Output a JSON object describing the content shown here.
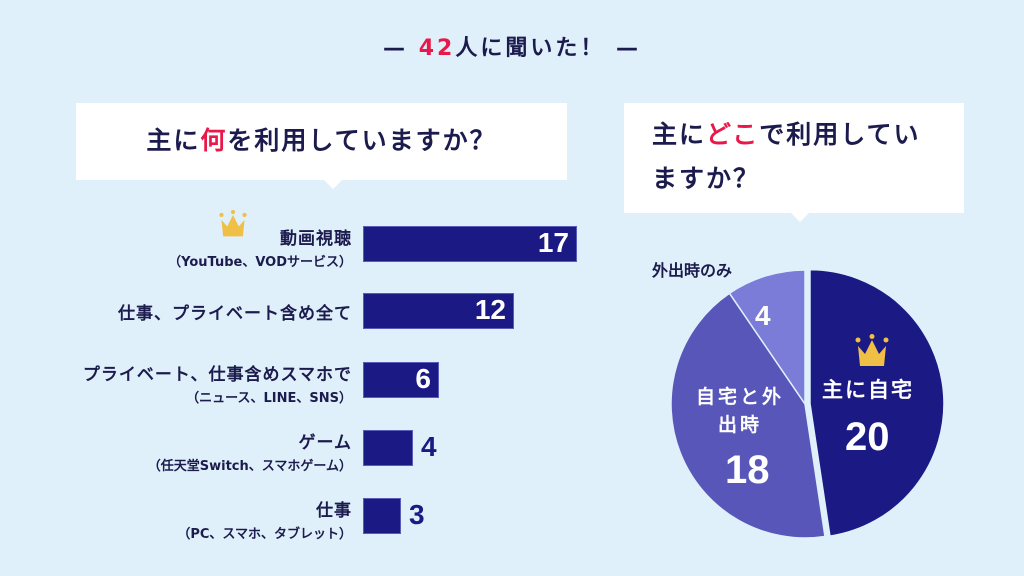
{
  "header": {
    "prefix": "— ",
    "number": "42",
    "suffix": "人に聞いた！ —"
  },
  "left_question": {
    "before": "主に",
    "highlight": "何",
    "after": "を利用していますか？"
  },
  "right_question": {
    "before": "主に",
    "highlight": "どこ",
    "after": "で利用していますか？"
  },
  "colors": {
    "navy": "#1b1a84",
    "mid": "#5856b8",
    "light": "#7b7bd8",
    "accent": "#e8194a",
    "crown": "#f0bf45",
    "background": "#dff0fb"
  },
  "chart_data": [
    {
      "type": "bar",
      "orientation": "horizontal",
      "categories": [
        {
          "label": "動画視聴",
          "sub": "（YouTube、VODサービス）",
          "crown": true
        },
        {
          "label": "仕事、プライベート含め全て",
          "sub": ""
        },
        {
          "label": "プライベート、仕事含めスマホで",
          "sub": "（ニュース、LINE、SNS）"
        },
        {
          "label": "ゲーム",
          "sub": "（任天堂Switch、スマホゲーム）"
        },
        {
          "label": "仕事",
          "sub": "（PC、スマホ、タブレット）"
        }
      ],
      "values": [
        17,
        12,
        6,
        4,
        3
      ],
      "value_labels": [
        "17",
        "12",
        "6",
        "4",
        "3"
      ]
    },
    {
      "type": "pie",
      "slices": [
        {
          "label": "主に自宅",
          "value": 20,
          "value_label": "20",
          "color": "#1b1a84",
          "crown": true
        },
        {
          "label": "自宅と外出時",
          "value": 18,
          "value_label": "18",
          "color": "#5856b8"
        },
        {
          "label": "外出時のみ",
          "value": 4,
          "value_label": "4",
          "color": "#7b7bd8"
        }
      ]
    }
  ]
}
